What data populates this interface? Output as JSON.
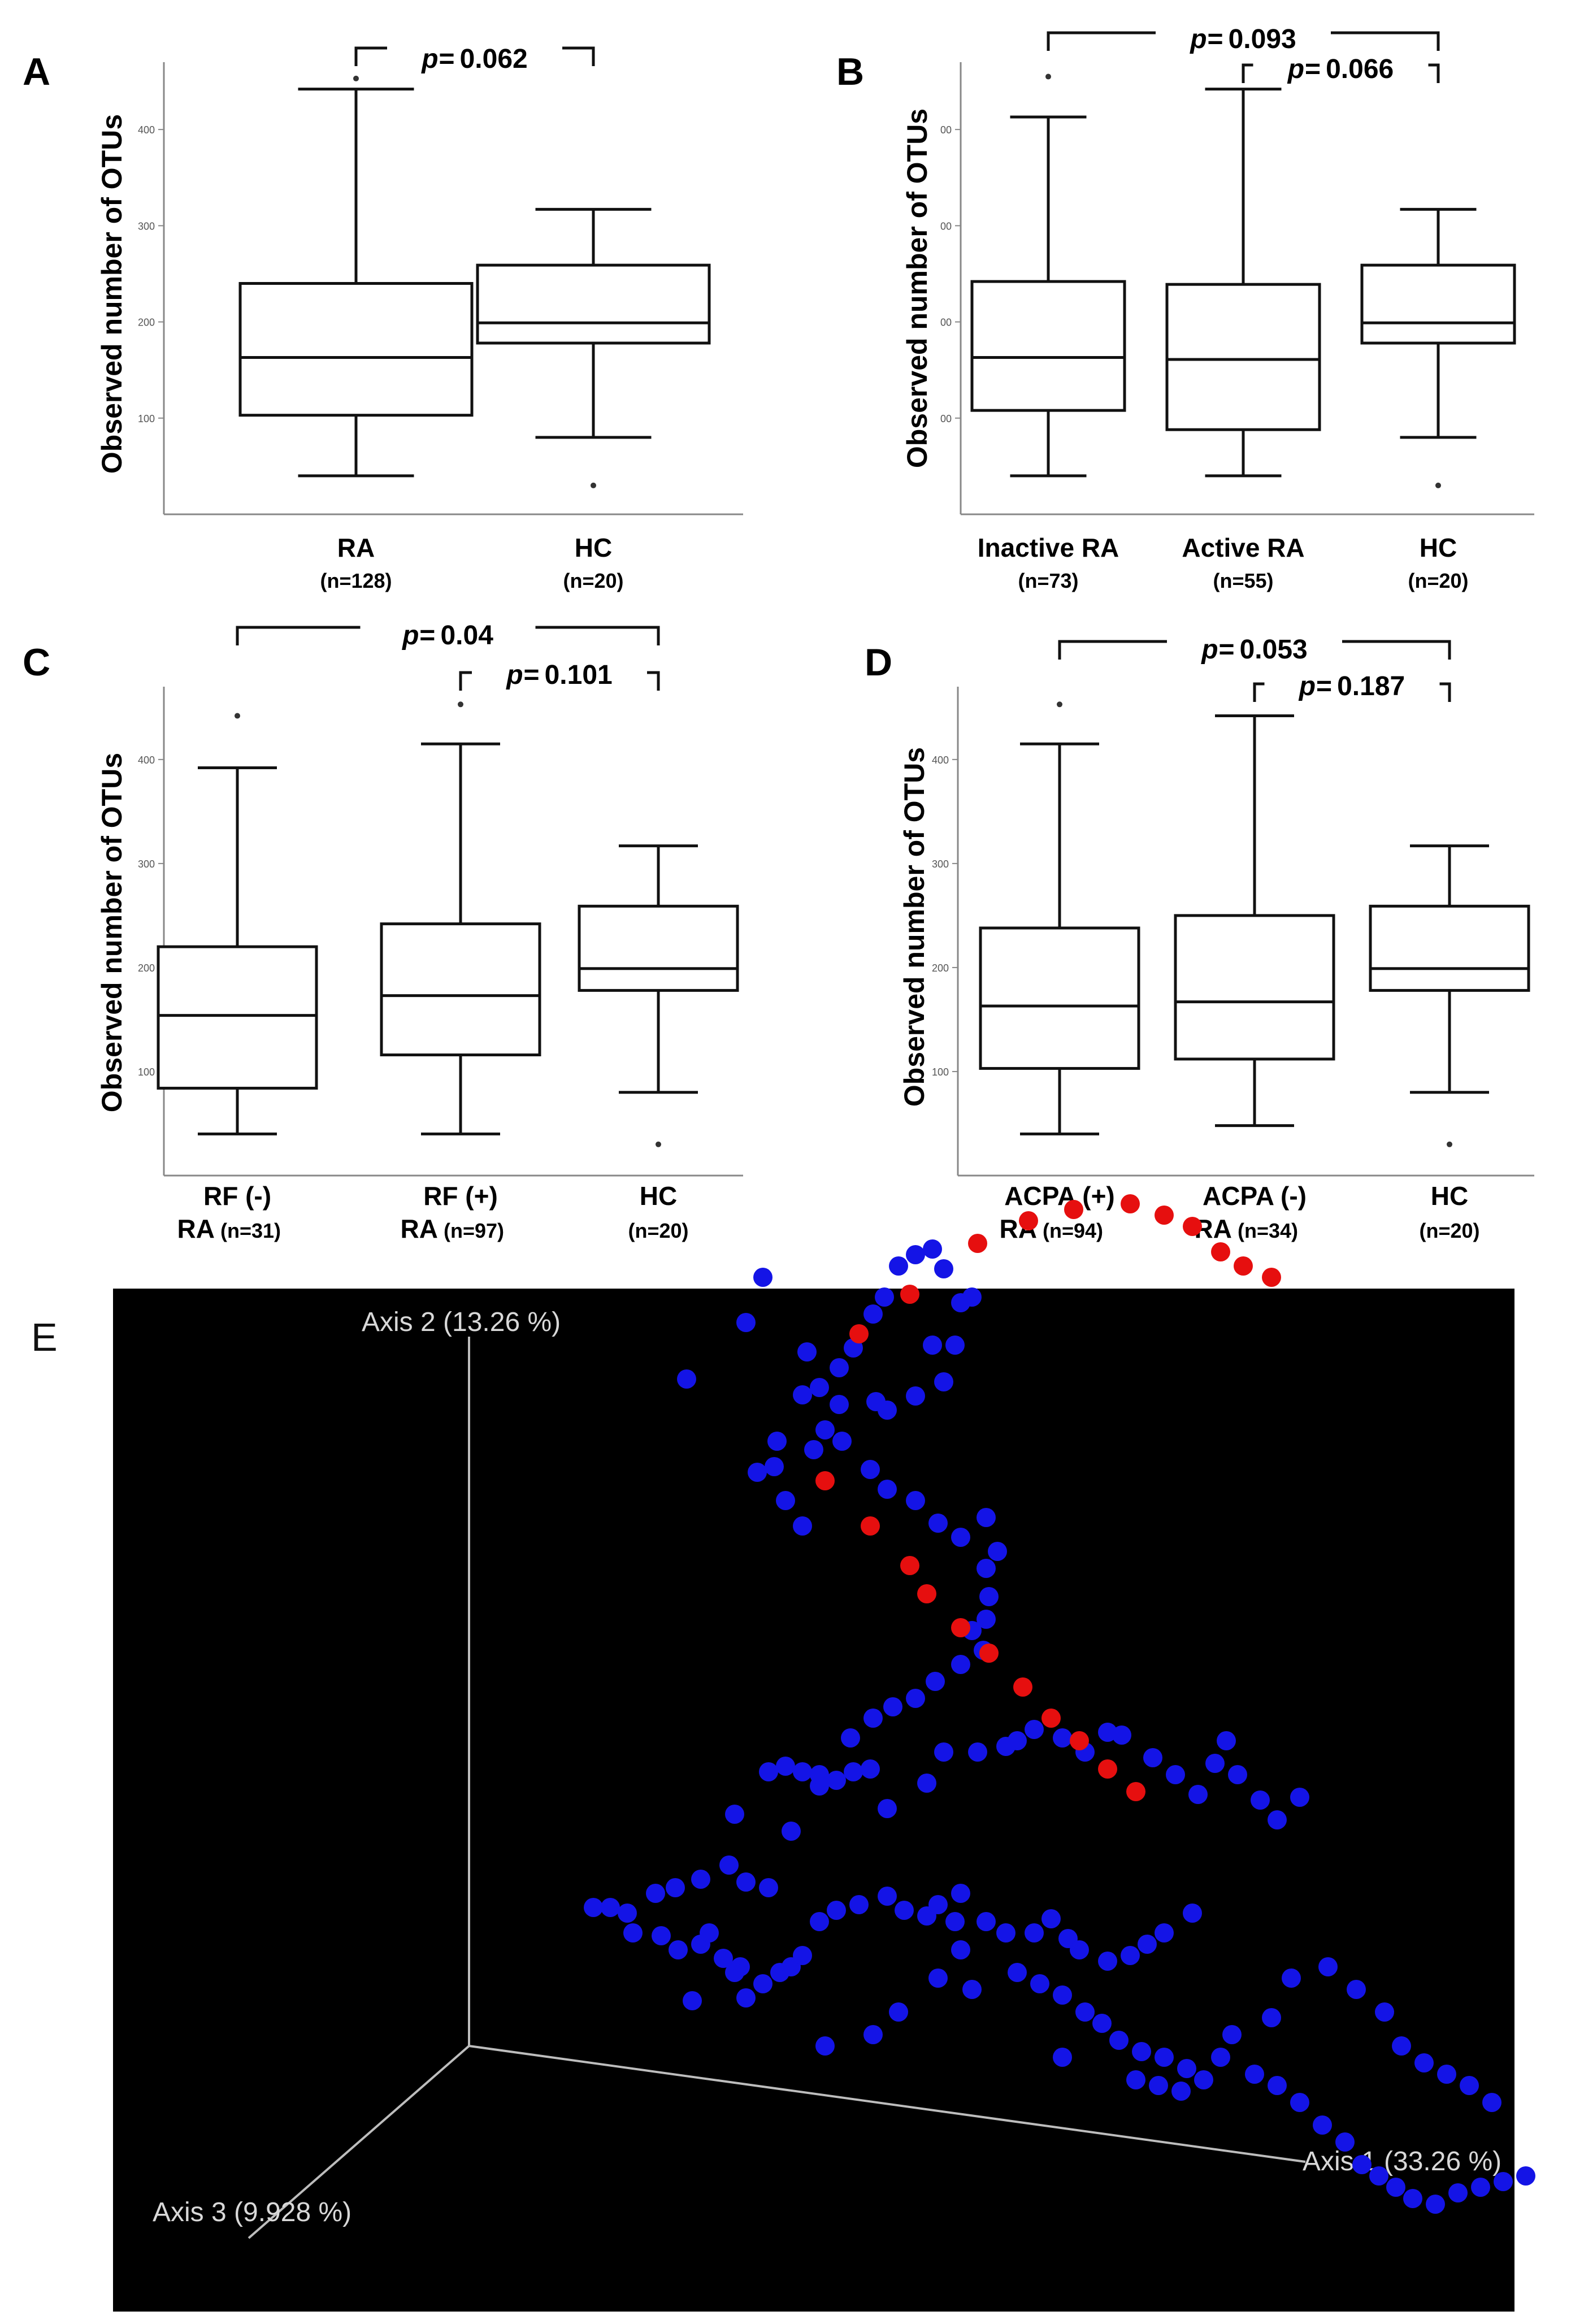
{
  "colors": {
    "box_stroke": "#111111",
    "axis": "#888888",
    "pcoa_background": "#000000",
    "pcoa_axis": "#bdbdbd",
    "ra_point": "#1414e6",
    "hc_point": "#e60f0f"
  },
  "chart_data": [
    {
      "panel": "A",
      "type": "box",
      "ylabel": "Observed number of OTUs",
      "yticks": [
        "100",
        "200",
        "300",
        "400"
      ],
      "ylim": [
        0,
        470
      ],
      "groups": [
        {
          "label": "RA",
          "n_label": "(n=128)",
          "min": 40,
          "q1": 103,
          "median": 163,
          "q3": 240,
          "max": 442,
          "outliers": [
            453
          ]
        },
        {
          "label": "HC",
          "n_label": "(n=20)",
          "min": 80,
          "q1": 178,
          "median": 199,
          "q3": 259,
          "max": 317,
          "outliers": [
            30
          ]
        }
      ],
      "comparisons": [
        {
          "from": 0,
          "to": 1,
          "p_label": "p=",
          "p_value": "0.062"
        }
      ]
    },
    {
      "panel": "B",
      "type": "box",
      "ylabel": "Observed number of OTUs",
      "yticks": [
        "00",
        "00",
        "00",
        "00"
      ],
      "ylim": [
        0,
        470
      ],
      "groups": [
        {
          "label": "Inactive RA",
          "n_label": "(n=73)",
          "min": 40,
          "q1": 108,
          "median": 163,
          "q3": 242,
          "max": 413,
          "outliers": [
            455
          ]
        },
        {
          "label": "Active RA",
          "n_label": "(n=55)",
          "min": 40,
          "q1": 88,
          "median": 161,
          "q3": 239,
          "max": 442,
          "outliers": []
        },
        {
          "label": "HC",
          "n_label": "(n=20)",
          "min": 80,
          "q1": 178,
          "median": 199,
          "q3": 259,
          "max": 317,
          "outliers": [
            30
          ]
        }
      ],
      "comparisons": [
        {
          "from": 0,
          "to": 2,
          "p_label": "p=",
          "p_value": "0.093"
        },
        {
          "from": 1,
          "to": 2,
          "p_label": "p=",
          "p_value": "0.066"
        }
      ]
    },
    {
      "panel": "C",
      "type": "box",
      "ylabel": "Observed number of OTUs",
      "yticks": [
        "100",
        "200",
        "300",
        "400"
      ],
      "ylim": [
        0,
        470
      ],
      "groups": [
        {
          "label": "RF (-)",
          "label2": "RA",
          "n_label": "(n=31)",
          "min": 40,
          "q1": 84,
          "median": 154,
          "q3": 220,
          "max": 392,
          "outliers": [
            442
          ]
        },
        {
          "label": "RF (+)",
          "label2": "RA",
          "n_label": "(n=97)",
          "min": 40,
          "q1": 116,
          "median": 173,
          "q3": 242,
          "max": 415,
          "outliers": [
            453
          ]
        },
        {
          "label": "HC",
          "label2": "",
          "n_label": "(n=20)",
          "min": 80,
          "q1": 178,
          "median": 199,
          "q3": 259,
          "max": 317,
          "outliers": [
            30
          ]
        }
      ],
      "comparisons": [
        {
          "from": 0,
          "to": 2,
          "p_label": "p=",
          "p_value": "0.04"
        },
        {
          "from": 1,
          "to": 2,
          "p_label": "p=",
          "p_value": "0.101"
        }
      ]
    },
    {
      "panel": "D",
      "type": "box",
      "ylabel": "Observed number of OTUs",
      "yticks": [
        "100",
        "200",
        "300",
        "400"
      ],
      "ylim": [
        0,
        470
      ],
      "groups": [
        {
          "label": "ACPA (+)",
          "label2": "RA",
          "n_label": "(n=94)",
          "min": 40,
          "q1": 103,
          "median": 163,
          "q3": 238,
          "max": 415,
          "outliers": [
            453
          ]
        },
        {
          "label": "ACPA (-)",
          "label2": "RA",
          "n_label": "(n=34)",
          "min": 48,
          "q1": 112,
          "median": 167,
          "q3": 250,
          "max": 442,
          "outliers": []
        },
        {
          "label": "HC",
          "label2": "",
          "n_label": "(n=20)",
          "min": 80,
          "q1": 178,
          "median": 199,
          "q3": 259,
          "max": 317,
          "outliers": [
            30
          ]
        }
      ],
      "comparisons": [
        {
          "from": 0,
          "to": 2,
          "p_label": "p=",
          "p_value": "0.053"
        },
        {
          "from": 1,
          "to": 2,
          "p_label": "p=",
          "p_value": "0.187"
        }
      ]
    },
    {
      "panel": "E",
      "type": "scatter",
      "axes": {
        "axis1": "Axis 1 (33.26 %)",
        "axis2": "Axis 2 (13.26 %)",
        "axis3": "Axis 3 (9.928 %)"
      },
      "series": [
        {
          "color": "blue",
          "points": [
            [
              1350,
              2260
            ],
            [
              1320,
              2340
            ],
            [
              1215,
              2440
            ],
            [
              1428,
              2392
            ],
            [
              1485,
              2420
            ],
            [
              1510,
              2385
            ],
            [
              1450,
              2455
            ],
            [
              1420,
              2468
            ],
            [
              1485,
              2485
            ],
            [
              1490,
              2550
            ],
            [
              1550,
              2480
            ],
            [
              1545,
              2325
            ],
            [
              1565,
              2295
            ],
            [
              1590,
              2240
            ],
            [
              1620,
              2220
            ],
            [
              1650,
              2210
            ],
            [
              1670,
              2245
            ],
            [
              1700,
              2305
            ],
            [
              1720,
              2295
            ],
            [
              1650,
              2380
            ],
            [
              1690,
              2380
            ],
            [
              1670,
              2445
            ],
            [
              1620,
              2470
            ],
            [
              1570,
              2495
            ],
            [
              1460,
              2530
            ],
            [
              1440,
              2565
            ],
            [
              1375,
              2550
            ],
            [
              1370,
              2595
            ],
            [
              1340,
              2605
            ],
            [
              1390,
              2655
            ],
            [
              1420,
              2700
            ],
            [
              1540,
              2600
            ],
            [
              1570,
              2635
            ],
            [
              1620,
              2655
            ],
            [
              1660,
              2695
            ],
            [
              1700,
              2720
            ],
            [
              1745,
              2685
            ],
            [
              1765,
              2745
            ],
            [
              1745,
              2775
            ],
            [
              1750,
              2825
            ],
            [
              1745,
              2865
            ],
            [
              1720,
              2885
            ],
            [
              1740,
              2920
            ],
            [
              1700,
              2945
            ],
            [
              1655,
              2975
            ],
            [
              1620,
              3005
            ],
            [
              1580,
              3020
            ],
            [
              1545,
              3040
            ],
            [
              1505,
              3075
            ],
            [
              1450,
              3160
            ],
            [
              1400,
              3240
            ],
            [
              1360,
              3340
            ],
            [
              1320,
              3330
            ],
            [
              1290,
              3300
            ],
            [
              1240,
              3325
            ],
            [
              1195,
              3340
            ],
            [
              1160,
              3350
            ],
            [
              1110,
              3385
            ],
            [
              1080,
              3375
            ],
            [
              1050,
              3375
            ],
            [
              1120,
              3420
            ],
            [
              1170,
              3425
            ],
            [
              1200,
              3450
            ],
            [
              1240,
              3440
            ],
            [
              1255,
              3420
            ],
            [
              1280,
              3465
            ],
            [
              1310,
              3480
            ],
            [
              1300,
              3490
            ],
            [
              1320,
              3535
            ],
            [
              1350,
              3510
            ],
            [
              1380,
              3490
            ],
            [
              1400,
              3480
            ],
            [
              1420,
              3460
            ],
            [
              1450,
              3400
            ],
            [
              1480,
              3380
            ],
            [
              1520,
              3370
            ],
            [
              1570,
              3355
            ],
            [
              1600,
              3380
            ],
            [
              1640,
              3390
            ],
            [
              1660,
              3370
            ],
            [
              1690,
              3400
            ],
            [
              1700,
              3350
            ],
            [
              1745,
              3400
            ],
            [
              1780,
              3420
            ],
            [
              1830,
              3420
            ],
            [
              1860,
              3395
            ],
            [
              1890,
              3430
            ],
            [
              1910,
              3450
            ],
            [
              1960,
              3470
            ],
            [
              2000,
              3460
            ],
            [
              2030,
              3440
            ],
            [
              2060,
              3420
            ],
            [
              2110,
              3385
            ],
            [
              1300,
              3210
            ],
            [
              1360,
              3135
            ],
            [
              1390,
              3125
            ],
            [
              1420,
              3135
            ],
            [
              1450,
              3140
            ],
            [
              1480,
              3150
            ],
            [
              1510,
              3135
            ],
            [
              1540,
              3130
            ],
            [
              1570,
              3200
            ],
            [
              1640,
              3155
            ],
            [
              1670,
              3100
            ],
            [
              1730,
              3100
            ],
            [
              1780,
              3090
            ],
            [
              1800,
              3080
            ],
            [
              1830,
              3060
            ],
            [
              1880,
              3075
            ],
            [
              1920,
              3100
            ],
            [
              1960,
              3065
            ],
            [
              1985,
              3070
            ],
            [
              2040,
              3110
            ],
            [
              2080,
              3140
            ],
            [
              2120,
              3175
            ],
            [
              2170,
              3080
            ],
            [
              2150,
              3120
            ],
            [
              2190,
              3140
            ],
            [
              2230,
              3185
            ],
            [
              2260,
              3220
            ],
            [
              2300,
              3180
            ],
            [
              1225,
              3540
            ],
            [
              1460,
              3620
            ],
            [
              1700,
              3450
            ],
            [
              1800,
              3490
            ],
            [
              1840,
              3510
            ],
            [
              1880,
              3530
            ],
            [
              1920,
              3560
            ],
            [
              1950,
              3580
            ],
            [
              1980,
              3610
            ],
            [
              2020,
              3630
            ],
            [
              2060,
              3640
            ],
            [
              2100,
              3660
            ],
            [
              1660,
              3500
            ],
            [
              1720,
              3520
            ],
            [
              1590,
              3560
            ],
            [
              1545,
              3600
            ],
            [
              1880,
              3640
            ],
            [
              2010,
              3680
            ],
            [
              2050,
              3690
            ],
            [
              2090,
              3700
            ],
            [
              2130,
              3680
            ],
            [
              2160,
              3640
            ],
            [
              2180,
              3600
            ],
            [
              2220,
              3670
            ],
            [
              2260,
              3690
            ],
            [
              2300,
              3720
            ],
            [
              2340,
              3760
            ],
            [
              2380,
              3790
            ],
            [
              2410,
              3830
            ],
            [
              2440,
              3850
            ],
            [
              2470,
              3870
            ],
            [
              2500,
              3890
            ],
            [
              2540,
              3900
            ],
            [
              2580,
              3880
            ],
            [
              2620,
              3870
            ],
            [
              2660,
              3860
            ],
            [
              2700,
              3850
            ],
            [
              2250,
              3570
            ],
            [
              2285,
              3500
            ],
            [
              2350,
              3480
            ],
            [
              2400,
              3520
            ],
            [
              2450,
              3560
            ],
            [
              2480,
              3620
            ],
            [
              2520,
              3650
            ],
            [
              2560,
              3670
            ],
            [
              2600,
              3690
            ],
            [
              2640,
              3720
            ]
          ]
        },
        {
          "color": "red",
          "points": [
            [
              1520,
              2360
            ],
            [
              1610,
              2290
            ],
            [
              1730,
              2200
            ],
            [
              1820,
              2160
            ],
            [
              1900,
              2140
            ],
            [
              2000,
              2130
            ],
            [
              2060,
              2150
            ],
            [
              2110,
              2170
            ],
            [
              2160,
              2215
            ],
            [
              2200,
              2240
            ],
            [
              2250,
              2260
            ],
            [
              1460,
              2620
            ],
            [
              1540,
              2700
            ],
            [
              1610,
              2770
            ],
            [
              1640,
              2820
            ],
            [
              1700,
              2880
            ],
            [
              1750,
              2925
            ],
            [
              1810,
              2985
            ],
            [
              1860,
              3040
            ],
            [
              1910,
              3080
            ],
            [
              1960,
              3130
            ],
            [
              2010,
              3170
            ]
          ]
        }
      ]
    }
  ]
}
